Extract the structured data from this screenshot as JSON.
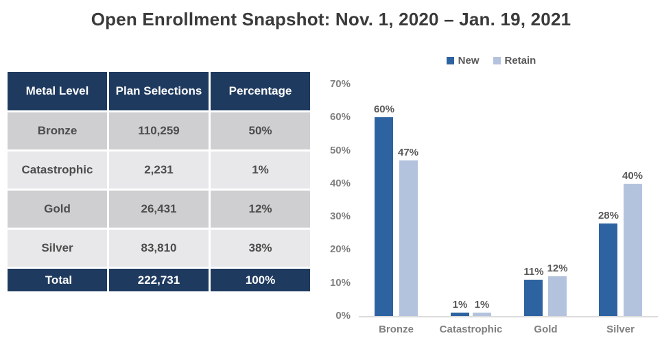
{
  "title": "Open Enrollment Snapshot: Nov. 1, 2020 – Jan. 19, 2021",
  "colors": {
    "navy": "#1F3A5F",
    "new_bar": "#2E63A1",
    "retain_bar": "#B4C3DD",
    "row_alt_dark": "#CFCFD1",
    "row_alt_light": "#E8E8EA",
    "title_text": "#3A3A3A",
    "body_text": "#4D4D4D",
    "axis_text": "#7F7F7F",
    "label_text": "#595959",
    "axis_line": "#DCDCDC"
  },
  "table": {
    "headers": [
      "Metal Level",
      "Plan Selections",
      "Percentage"
    ],
    "rows": [
      {
        "metal": "Bronze",
        "selections": "110,259",
        "pct": "50%"
      },
      {
        "metal": "Catastrophic",
        "selections": "2,231",
        "pct": "1%"
      },
      {
        "metal": "Gold",
        "selections": "26,431",
        "pct": "12%"
      },
      {
        "metal": "Silver",
        "selections": "83,810",
        "pct": "38%"
      }
    ],
    "total": {
      "metal": "Total",
      "selections": "222,731",
      "pct": "100%"
    }
  },
  "chart_data": {
    "type": "bar",
    "categories": [
      "Bronze",
      "Catastrophic",
      "Gold",
      "Silver"
    ],
    "series": [
      {
        "name": "New",
        "values": [
          60,
          1,
          11,
          28
        ],
        "color": "#2E63A1"
      },
      {
        "name": "Retain",
        "values": [
          47,
          1,
          12,
          40
        ],
        "color": "#B4C3DD"
      }
    ],
    "value_labels": [
      [
        "60%",
        "47%"
      ],
      [
        "1%",
        "1%"
      ],
      [
        "11%",
        "12%"
      ],
      [
        "28%",
        "40%"
      ]
    ],
    "ytick_labels": [
      "0%",
      "10%",
      "20%",
      "30%",
      "40%",
      "50%",
      "60%",
      "70%"
    ],
    "ylim": [
      0,
      70
    ],
    "title": "",
    "xlabel": "",
    "ylabel": "",
    "grid": false,
    "legend_position": "top"
  }
}
